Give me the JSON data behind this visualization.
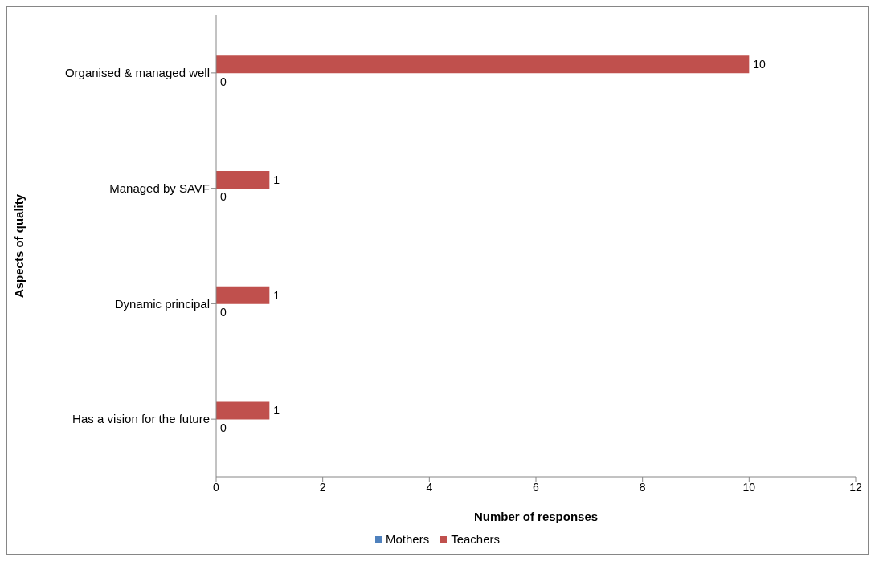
{
  "chart_data": {
    "type": "bar",
    "orientation": "horizontal",
    "categories": [
      "Organised & managed well",
      "Managed by SAVF",
      "Dynamic principal",
      "Has a vision for the future"
    ],
    "series": [
      {
        "name": "Mothers",
        "color": "#4f81bd",
        "values": [
          0,
          0,
          0,
          0
        ]
      },
      {
        "name": "Teachers",
        "color": "#c0504d",
        "values": [
          10,
          1,
          1,
          1
        ]
      }
    ],
    "xlabel": "Number of responses",
    "ylabel": "Aspects of quality",
    "xlim": [
      0,
      12
    ],
    "xticks": [
      0,
      2,
      4,
      6,
      8,
      10,
      12
    ],
    "data_labels": true,
    "legend": "bottom",
    "grid": false
  }
}
